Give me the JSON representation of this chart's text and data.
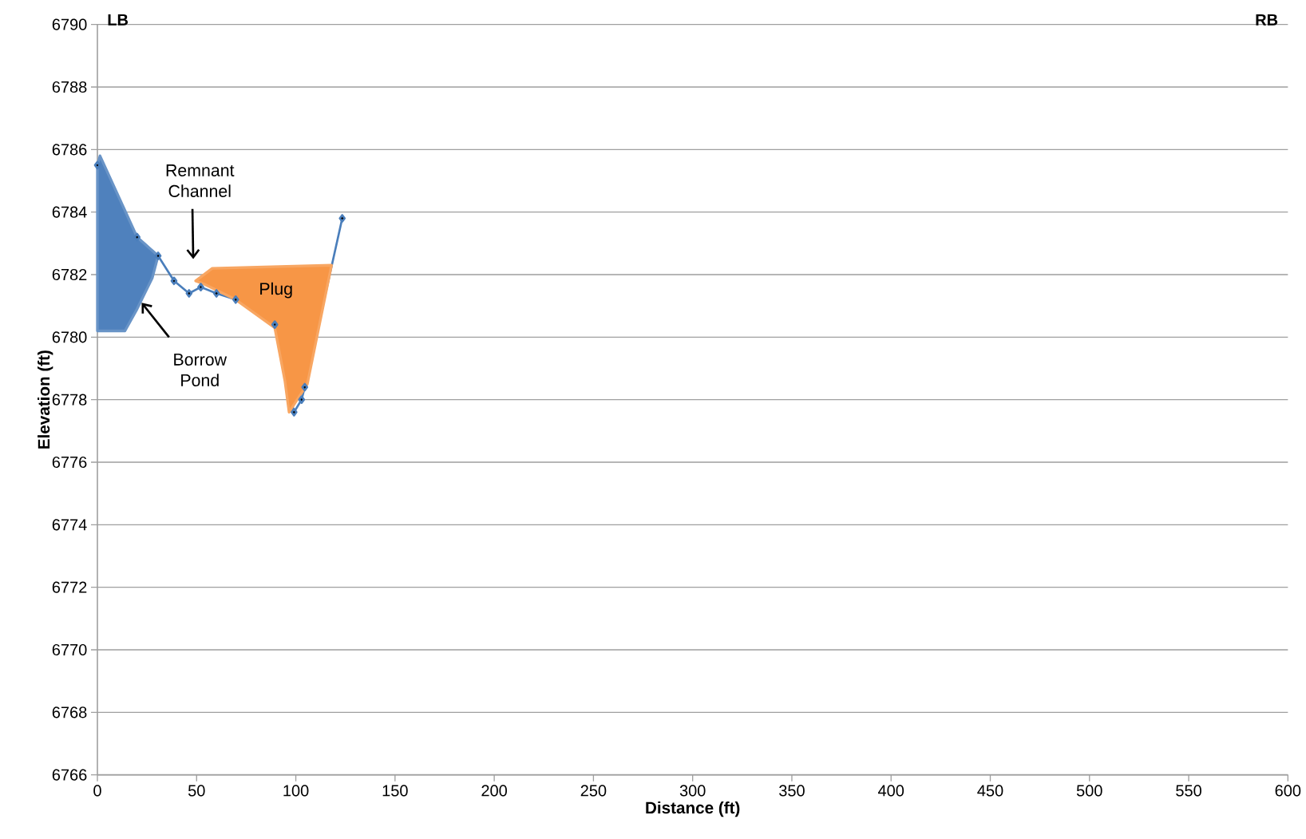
{
  "chart_data": {
    "type": "line",
    "xlabel": "Distance (ft)",
    "ylabel": "Elevation (ft)",
    "xlim": [
      0,
      600
    ],
    "xticks": [
      0,
      50,
      100,
      150,
      200,
      250,
      300,
      350,
      400,
      450,
      500,
      550,
      600
    ],
    "ylim": [
      6766,
      6790
    ],
    "yticks": [
      6766,
      6768,
      6770,
      6772,
      6774,
      6776,
      6778,
      6780,
      6782,
      6784,
      6786,
      6788,
      6790
    ],
    "grid": "y",
    "series": [
      {
        "color": "#4a7ebb",
        "marker": "diamond",
        "x": [
          0,
          20,
          30.6,
          38.6,
          46.2,
          52.1,
          60,
          69.7,
          89.4,
          99.1,
          102.9,
          104.5,
          123.4
        ],
        "values": [
          6785.5,
          6783.2,
          6782.6,
          6781.8,
          6781.4,
          6781.6,
          6781.4,
          6781.2,
          6780.4,
          6777.6,
          6778.0,
          6778.4,
          6783.8
        ]
      },
      {
        "type": "area",
        "color": "#4f81bd",
        "x": [
          0,
          1.3,
          20,
          30.6,
          27.7,
          20,
          13.9,
          0
        ],
        "values": [
          6785.5,
          6785.8,
          6783.2,
          6782.6,
          6781.9,
          6780.9,
          6780.2,
          6780.2
        ]
      },
      {
        "type": "area",
        "color": "#f79646",
        "x": [
          49.5,
          57.9,
          118,
          105.8,
          96.6,
          94.5,
          89.4,
          69.7,
          53.7
        ],
        "values": [
          6781.8,
          6782.2,
          6782.3,
          6778.5,
          6777.6,
          6778.6,
          6780.3,
          6781.2,
          6781.7
        ]
      }
    ],
    "annotations": [
      "LB",
      "RB",
      "Remnant Channel",
      "Plug",
      {
        "text": "Borrow Pond",
        "x": 22.3,
        "y": 6781.1
      }
    ]
  }
}
